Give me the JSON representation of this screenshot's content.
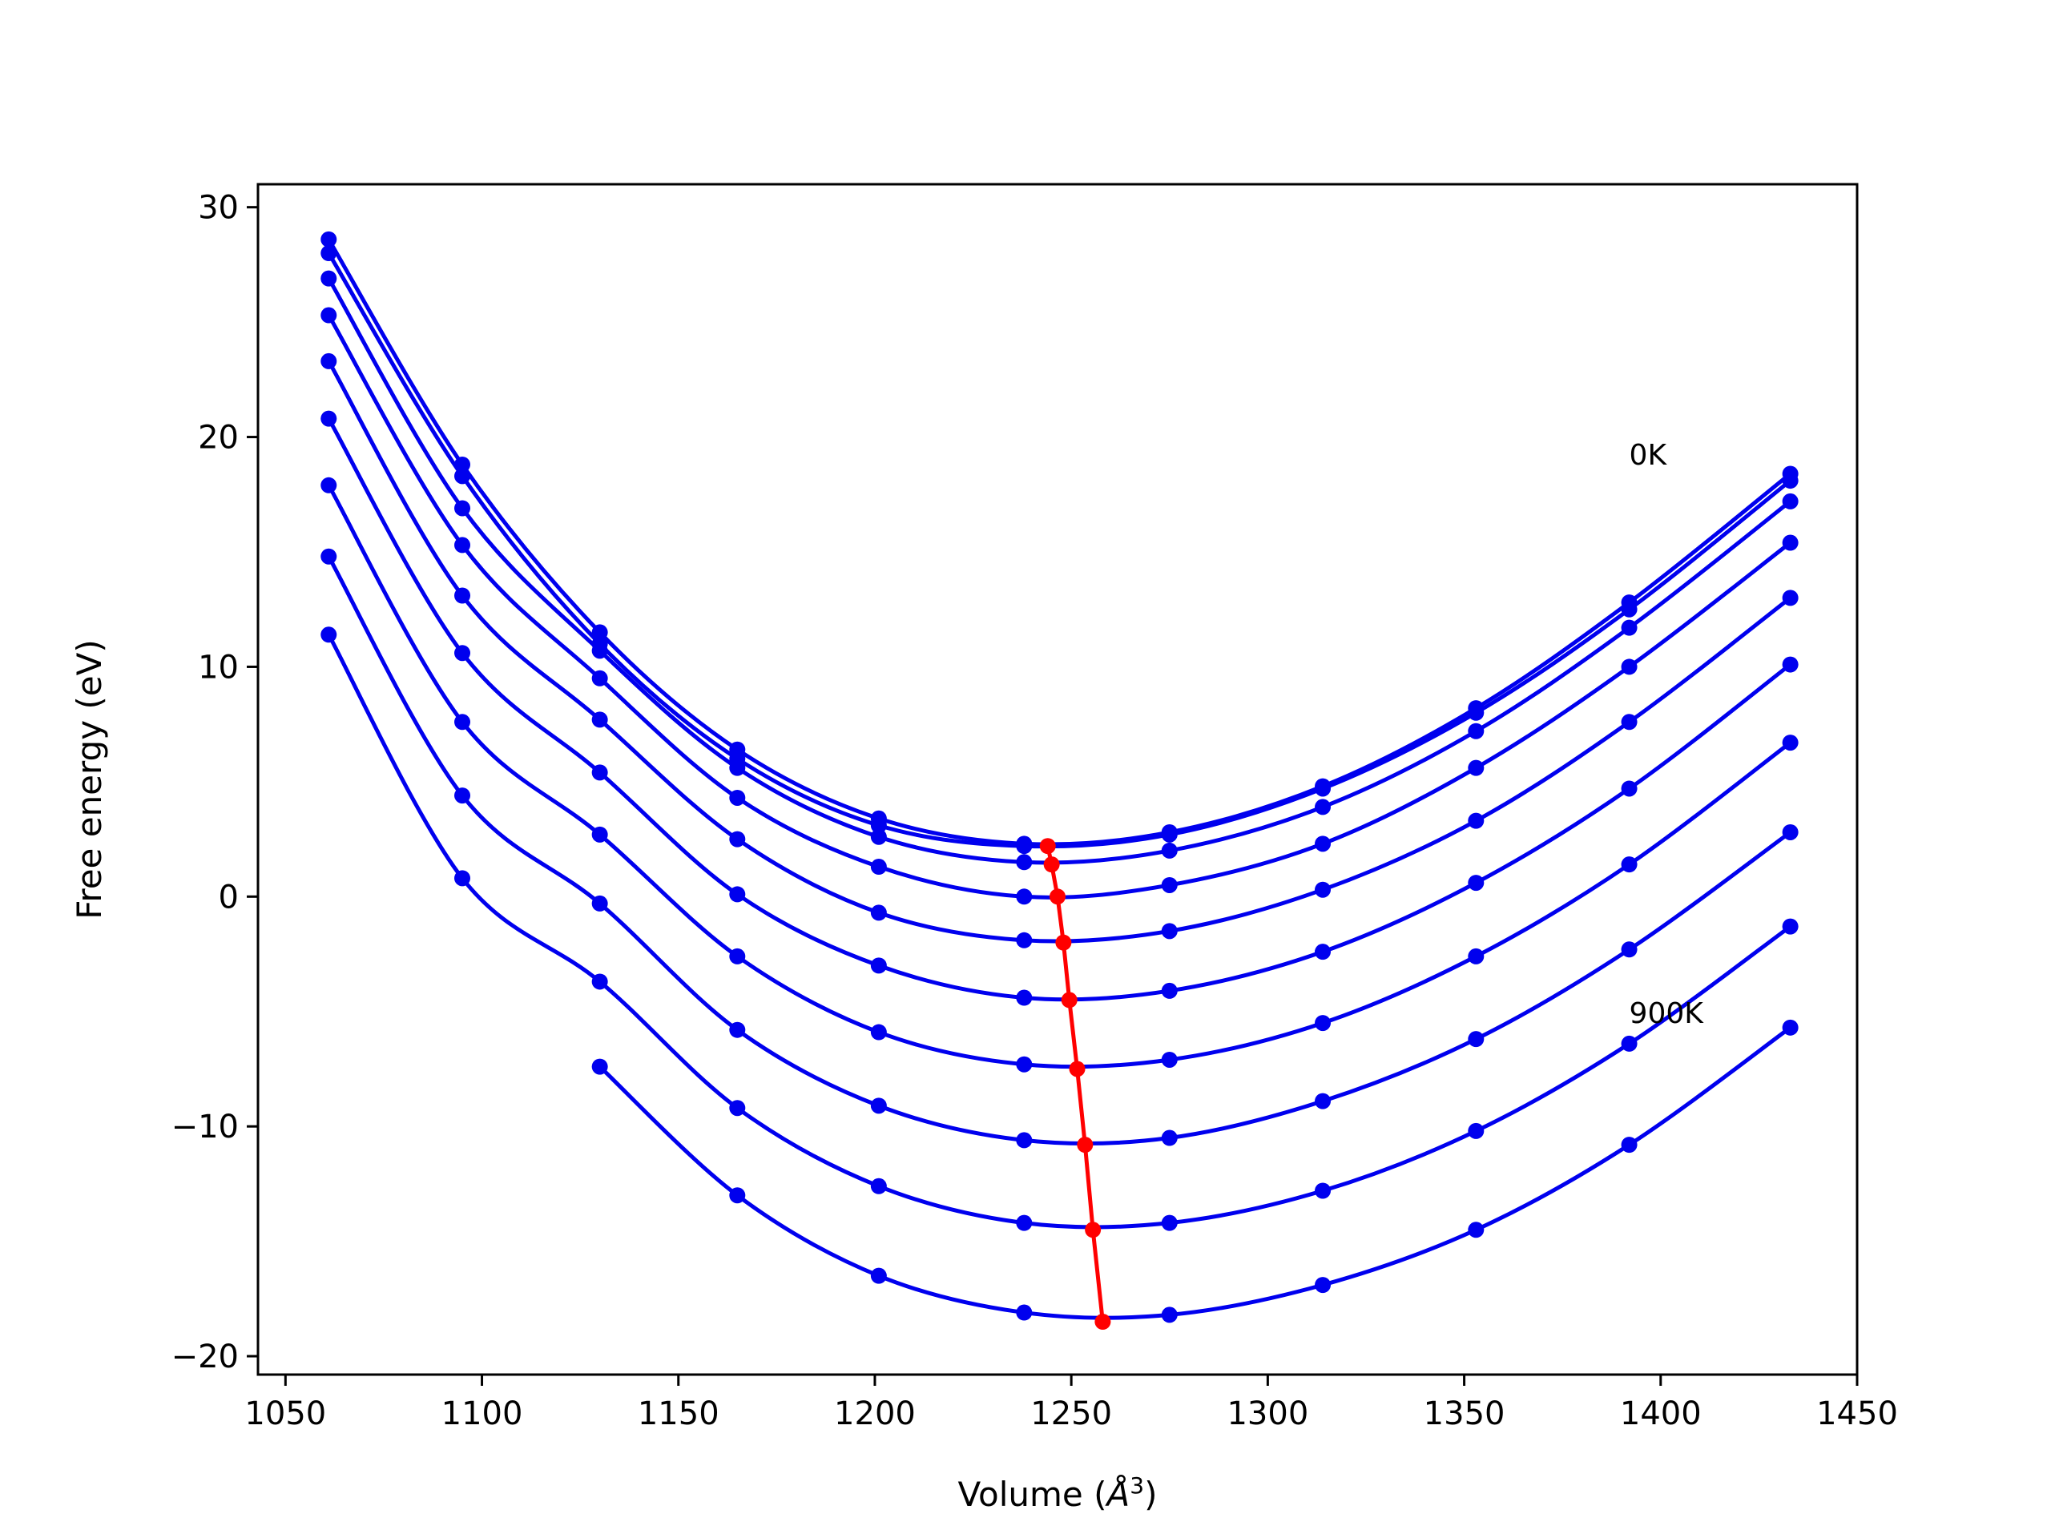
{
  "chart_data": {
    "type": "line",
    "title": "",
    "xlabel_prefix": "Volume (",
    "xlabel_unit": "Å",
    "xlabel_exponent": "3",
    "xlabel_suffix": ")",
    "ylabel": "Free energy (eV)",
    "xlim": [
      1043,
      1450
    ],
    "ylim": [
      -20.8,
      31.0
    ],
    "xticks": [
      1050,
      1100,
      1150,
      1200,
      1250,
      1300,
      1350,
      1400,
      1450
    ],
    "xtick_labels": [
      "1050",
      "1100",
      "1150",
      "1200",
      "1250",
      "1300",
      "1350",
      "1400",
      "1450"
    ],
    "yticks": [
      -20,
      -10,
      0,
      10,
      20,
      30
    ],
    "ytick_labels": [
      "−20",
      "−10",
      "0",
      "10",
      "20",
      "30"
    ],
    "grid": false,
    "legend": "none",
    "x": [
      1061,
      1095,
      1130,
      1165,
      1201,
      1238,
      1275,
      1314,
      1353,
      1392,
      1433
    ],
    "series": [
      {
        "color": "#0000ee",
        "values": [
          28.6,
          18.8,
          11.5,
          6.4,
          3.4,
          2.3,
          2.8,
          4.8,
          8.2,
          12.8,
          18.4
        ]
      },
      {
        "color": "#0000ee",
        "values": [
          28.0,
          18.3,
          11.0,
          6.0,
          3.1,
          2.2,
          2.7,
          4.7,
          8.0,
          12.5,
          18.1
        ]
      },
      {
        "color": "#0000ee",
        "values": [
          26.9,
          16.9,
          10.7,
          5.6,
          2.6,
          1.5,
          2.0,
          3.9,
          7.2,
          11.7,
          17.2
        ]
      },
      {
        "color": "#0000ee",
        "values": [
          25.3,
          15.3,
          9.5,
          4.3,
          1.3,
          0.0,
          0.5,
          2.3,
          5.6,
          10.0,
          15.4
        ]
      },
      {
        "color": "#0000ee",
        "values": [
          23.3,
          13.1,
          7.7,
          2.5,
          -0.7,
          -1.9,
          -1.5,
          0.3,
          3.3,
          7.6,
          13.0
        ]
      },
      {
        "color": "#0000ee",
        "values": [
          20.8,
          10.6,
          5.4,
          0.1,
          -3.0,
          -4.4,
          -4.1,
          -2.4,
          0.6,
          4.7,
          10.1
        ]
      },
      {
        "color": "#0000ee",
        "values": [
          17.9,
          7.6,
          2.7,
          -2.6,
          -5.9,
          -7.3,
          -7.1,
          -5.5,
          -2.6,
          1.4,
          6.7
        ]
      },
      {
        "color": "#0000ee",
        "values": [
          14.8,
          4.4,
          -0.3,
          -5.8,
          -9.1,
          -10.6,
          -10.5,
          -8.9,
          -6.2,
          -2.3,
          2.8
        ]
      },
      {
        "color": "#0000ee",
        "values": [
          11.4,
          0.8,
          -3.7,
          -9.2,
          -12.6,
          -14.2,
          -14.2,
          -12.8,
          -10.2,
          -6.4,
          -1.3
        ]
      },
      {
        "color": "#0000ee",
        "values": [
          null,
          null,
          -7.4,
          -13.0,
          -16.5,
          -18.1,
          -18.2,
          -16.9,
          -14.5,
          -10.8,
          -5.7
        ]
      }
    ],
    "minima_path": {
      "color": "#ff0000",
      "x": [
        1244,
        1245,
        1246.5,
        1248,
        1249.5,
        1251.5,
        1253.5,
        1255.5,
        1258
      ],
      "y": [
        2.2,
        1.4,
        0.0,
        -2.0,
        -4.5,
        -7.5,
        -10.8,
        -14.5,
        -18.5
      ]
    },
    "annotations": [
      {
        "text": "0K",
        "x": 1392,
        "y": 18.8
      },
      {
        "text": "900K",
        "x": 1392,
        "y": -5.5
      }
    ]
  }
}
